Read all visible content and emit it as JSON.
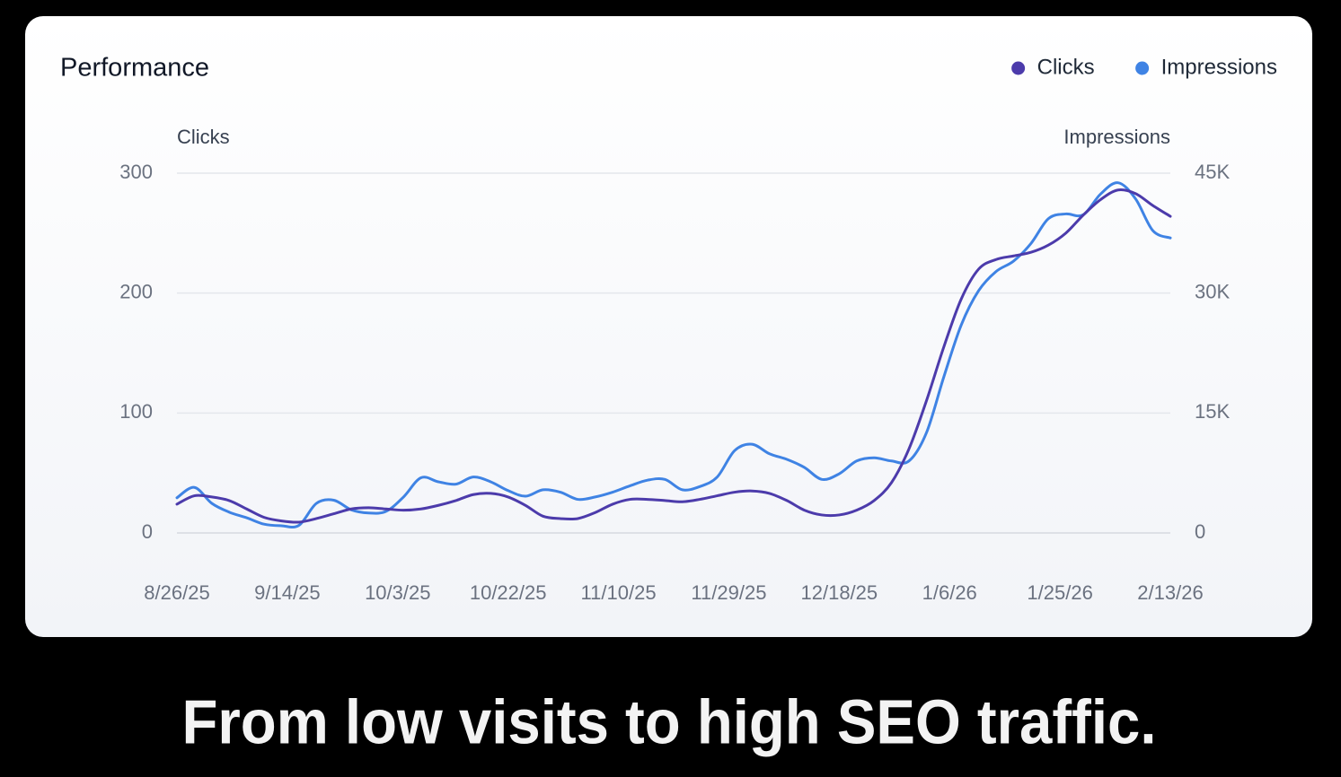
{
  "chart_data": {
    "type": "line",
    "title": "Performance",
    "y_label": "Clicks",
    "y2_label": "Impressions",
    "caption": "From low visits to high SEO traffic.",
    "x": [
      "8/26/25",
      "8/29/25",
      "9/1/25",
      "9/4/25",
      "9/7/25",
      "9/10/25",
      "9/13/25",
      "9/16/25",
      "9/19/25",
      "9/22/25",
      "9/25/25",
      "9/28/25",
      "10/1/25",
      "10/4/25",
      "10/7/25",
      "10/10/25",
      "10/13/25",
      "10/16/25",
      "10/19/25",
      "10/22/25",
      "10/25/25",
      "10/28/25",
      "10/31/25",
      "11/3/25",
      "11/6/25",
      "11/9/25",
      "11/12/25",
      "11/15/25",
      "11/18/25",
      "11/21/25",
      "11/24/25",
      "11/27/25",
      "11/30/25",
      "12/3/25",
      "12/6/25",
      "12/9/25",
      "12/12/25",
      "12/15/25",
      "12/18/25",
      "12/21/25",
      "12/24/25",
      "12/27/25",
      "12/30/25",
      "1/2/26",
      "1/5/26",
      "1/8/26",
      "1/11/26",
      "1/14/26",
      "1/17/26",
      "1/20/26",
      "1/23/26",
      "1/26/26",
      "1/29/26",
      "2/1/26",
      "2/4/26",
      "2/7/26",
      "2/10/26",
      "2/13/26"
    ],
    "series": [
      {
        "name": "Clicks",
        "color": "#4c3bab",
        "axis": "y",
        "values": [
          24,
          31,
          30,
          27,
          20,
          13,
          10,
          9,
          12,
          16,
          20,
          21,
          20,
          19,
          20,
          23,
          27,
          32,
          33,
          30,
          23,
          14,
          12,
          12,
          17,
          24,
          28,
          28,
          27,
          26,
          28,
          31,
          34,
          35,
          33,
          27,
          19,
          15,
          15,
          19,
          27,
          42,
          70,
          110,
          155,
          195,
          220,
          228,
          231,
          234,
          240,
          250,
          265,
          278,
          286,
          283,
          273,
          264
        ]
      },
      {
        "name": "Impressions",
        "color": "#3f83e4",
        "axis": "y2",
        "values": [
          4400,
          5700,
          3700,
          2600,
          1900,
          1100,
          900,
          950,
          3700,
          4100,
          2900,
          2500,
          2700,
          4500,
          6900,
          6400,
          6100,
          7000,
          6400,
          5300,
          4600,
          5400,
          5100,
          4200,
          4500,
          5100,
          5900,
          6600,
          6700,
          5400,
          5800,
          7000,
          10300,
          11100,
          9900,
          9200,
          8200,
          6700,
          7400,
          9000,
          9400,
          9000,
          9000,
          12500,
          19500,
          26000,
          30300,
          32700,
          34000,
          36200,
          39300,
          39900,
          39800,
          42400,
          43800,
          41800,
          37800,
          36900
        ]
      }
    ],
    "xlim": [
      "8/26/25",
      "2/13/26"
    ],
    "xticks": [
      "8/26/25",
      "9/14/25",
      "10/3/25",
      "10/22/25",
      "11/10/25",
      "11/29/25",
      "12/18/25",
      "1/6/26",
      "1/25/26",
      "2/13/26"
    ],
    "ylim": [
      0,
      300
    ],
    "yticks": [
      0,
      100,
      200,
      300
    ],
    "y2lim": [
      0,
      45000
    ],
    "y2ticks": [
      0,
      {
        "value": 15000,
        "label": "15K"
      },
      {
        "value": 30000,
        "label": "30K"
      },
      {
        "value": 45000,
        "label": "45K"
      }
    ],
    "grid": true,
    "legend": "top-right"
  }
}
